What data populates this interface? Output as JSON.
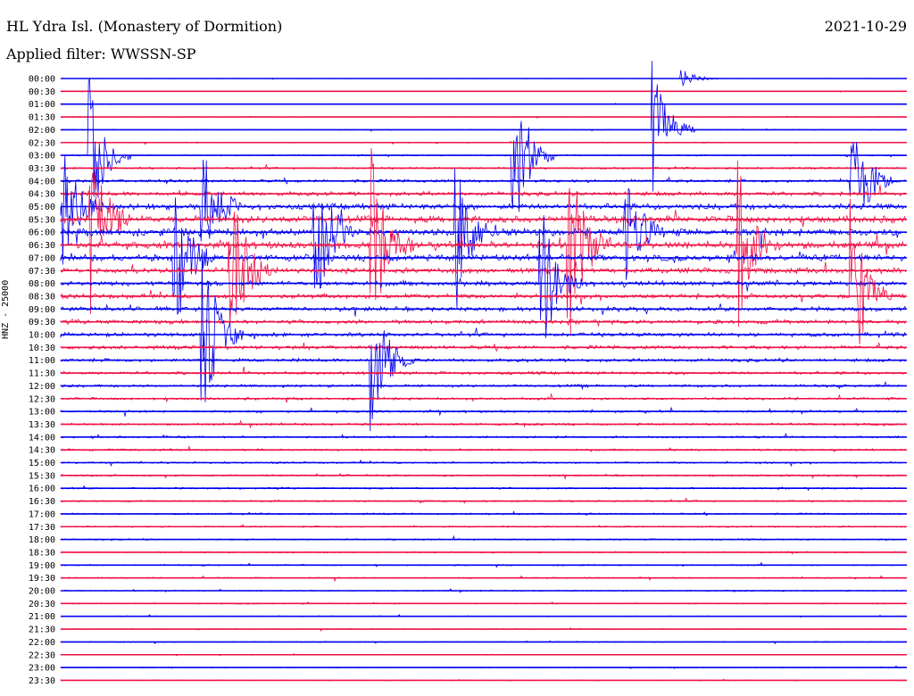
{
  "header": {
    "station": "HL Ydra Isl. (Monastery of Dormition)",
    "date": "2021-10-29",
    "filter": "Applied filter: WWSSN-SP",
    "channel_label": "HNZ - 25000"
  },
  "colors": {
    "trace_a": "#0000ee",
    "trace_b": "#ee1144",
    "background": "#ffffff"
  },
  "chart_data": {
    "type": "line",
    "title": "HL Ydra Isl. (Monastery of Dormition)",
    "subtitle": "Applied filter: WWSSN-SP",
    "ylabel": "HNZ - 25000",
    "xlabel": "",
    "row_labels": [
      "00:00",
      "00:30",
      "01:00",
      "01:30",
      "02:00",
      "02:30",
      "03:00",
      "03:30",
      "04:00",
      "04:30",
      "05:00",
      "05:30",
      "06:00",
      "06:30",
      "07:00",
      "07:30",
      "08:00",
      "08:30",
      "09:00",
      "09:30",
      "10:00",
      "10:30",
      "11:00",
      "11:30",
      "12:00",
      "12:30",
      "13:00",
      "13:30",
      "14:00",
      "14:30",
      "15:00",
      "15:30",
      "16:00",
      "16:30",
      "17:00",
      "17:30",
      "18:00",
      "18:30",
      "19:00",
      "19:30",
      "20:00",
      "20:30",
      "21:00",
      "21:30",
      "22:00",
      "22:30",
      "23:00",
      "23:30"
    ],
    "row_amplitude": [
      0.02,
      0.03,
      0.03,
      0.04,
      0.05,
      0.06,
      0.08,
      0.12,
      0.18,
      0.25,
      0.35,
      0.42,
      0.45,
      0.42,
      0.38,
      0.32,
      0.3,
      0.28,
      0.26,
      0.25,
      0.24,
      0.22,
      0.2,
      0.18,
      0.16,
      0.15,
      0.14,
      0.13,
      0.12,
      0.12,
      0.11,
      0.11,
      0.11,
      0.1,
      0.1,
      0.1,
      0.09,
      0.09,
      0.08,
      0.08,
      0.07,
      0.07,
      0.06,
      0.06,
      0.06,
      0.05,
      0.05,
      0.05
    ],
    "events": [
      {
        "row": 0,
        "minute": 22,
        "amp": 0.3
      },
      {
        "row": 4,
        "minute": 21,
        "amp": 2.0
      },
      {
        "row": 6,
        "minute": 1,
        "amp": 2.5
      },
      {
        "row": 6,
        "minute": 16,
        "amp": 3.0
      },
      {
        "row": 8,
        "minute": 28,
        "amp": 2.5
      },
      {
        "row": 10,
        "minute": 0,
        "amp": 2.2
      },
      {
        "row": 10,
        "minute": 5,
        "amp": 2.0
      },
      {
        "row": 11,
        "minute": 1,
        "amp": 3.0
      },
      {
        "row": 12,
        "minute": 9,
        "amp": 2.5
      },
      {
        "row": 12,
        "minute": 14,
        "amp": 2.4
      },
      {
        "row": 12,
        "minute": 20,
        "amp": 2.0
      },
      {
        "row": 13,
        "minute": 11,
        "amp": 2.8
      },
      {
        "row": 13,
        "minute": 18,
        "amp": 3.0
      },
      {
        "row": 13,
        "minute": 24,
        "amp": 2.5
      },
      {
        "row": 14,
        "minute": 4,
        "amp": 2.6
      },
      {
        "row": 15,
        "minute": 6,
        "amp": 3.2
      },
      {
        "row": 16,
        "minute": 17,
        "amp": 2.5
      },
      {
        "row": 17,
        "minute": 28,
        "amp": 3.0
      },
      {
        "row": 20,
        "minute": 5,
        "amp": 3.0
      },
      {
        "row": 22,
        "minute": 11,
        "amp": 2.5
      }
    ]
  }
}
